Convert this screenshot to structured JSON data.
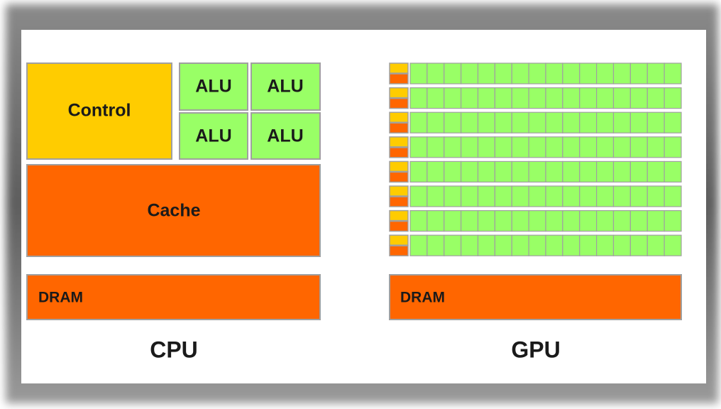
{
  "cpu": {
    "control": "Control",
    "alus": [
      "ALU",
      "ALU",
      "ALU",
      "ALU"
    ],
    "cache": "Cache",
    "dram": "DRAM",
    "label": "CPU"
  },
  "gpu": {
    "dram": "DRAM",
    "label": "GPU"
  }
}
